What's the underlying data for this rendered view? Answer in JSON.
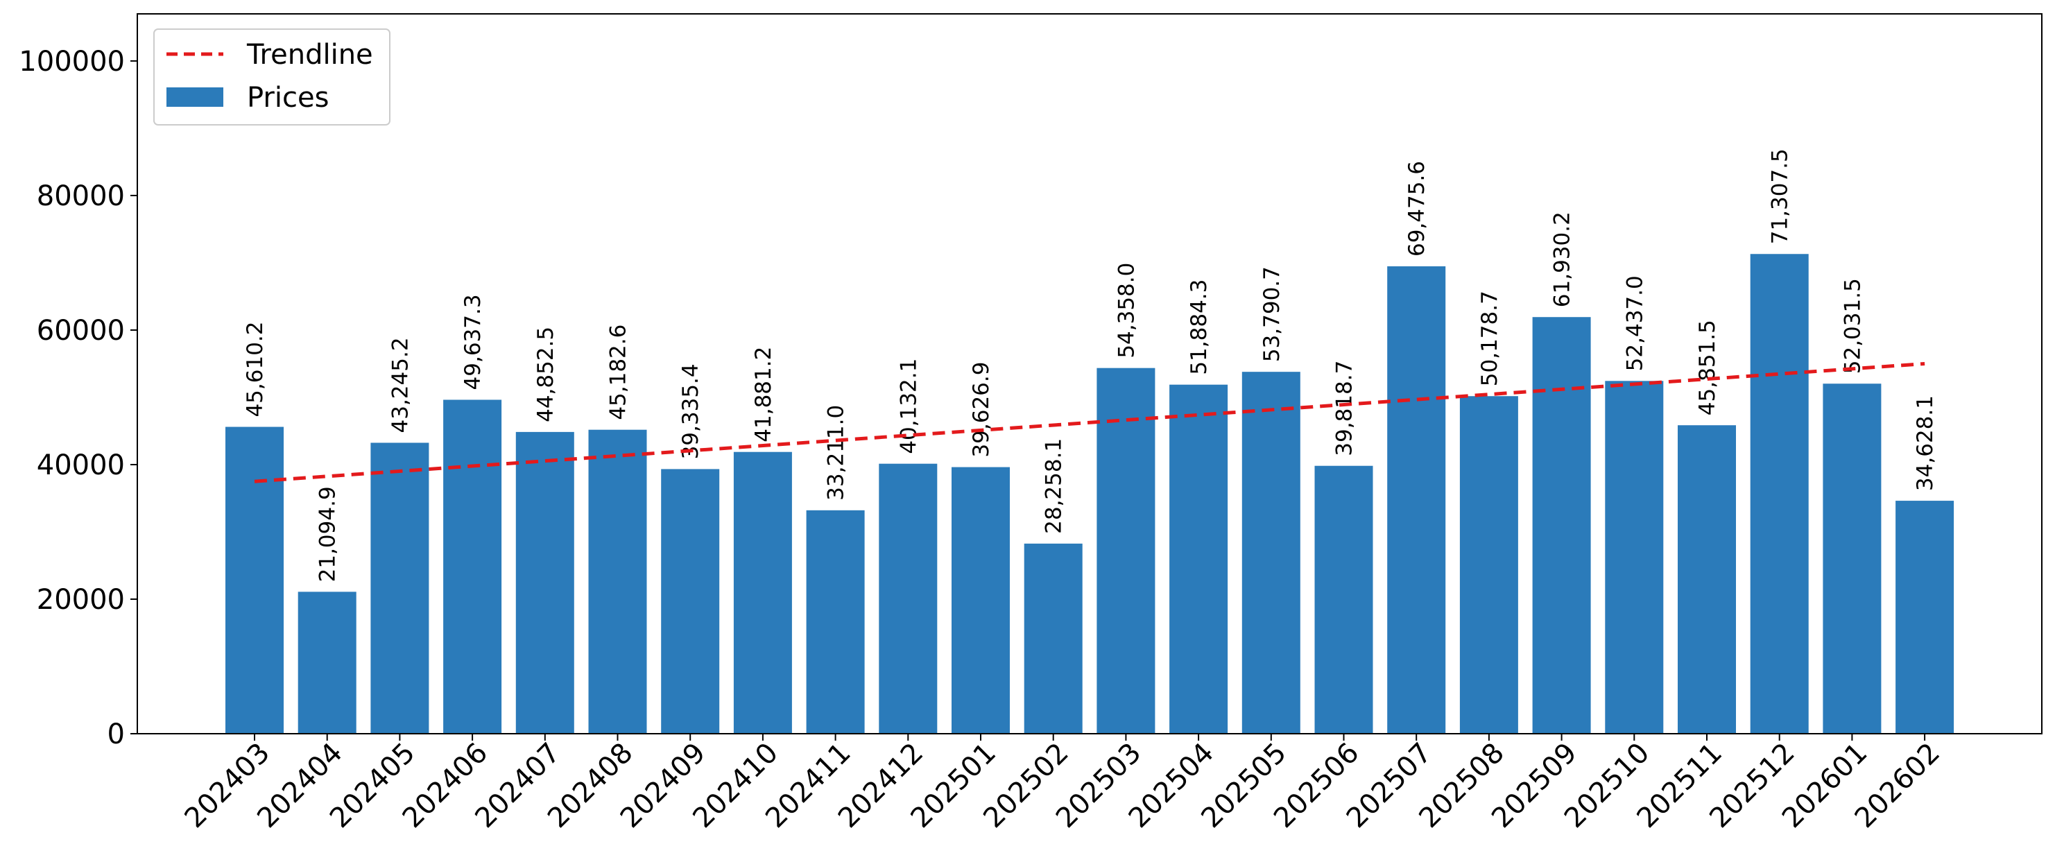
{
  "chart_data": {
    "type": "bar",
    "categories": [
      "202403",
      "202404",
      "202405",
      "202406",
      "202407",
      "202408",
      "202409",
      "202410",
      "202411",
      "202412",
      "202501",
      "202502",
      "202503",
      "202504",
      "202505",
      "202506",
      "202507",
      "202508",
      "202509",
      "202510",
      "202511",
      "202512",
      "202601",
      "202602"
    ],
    "series": [
      {
        "name": "Prices",
        "values": [
          45610.2,
          21094.9,
          43245.2,
          49637.3,
          44852.5,
          45182.6,
          39335.4,
          41881.2,
          33211.0,
          40132.1,
          39626.9,
          28258.1,
          54358.0,
          51884.3,
          53790.7,
          39818.7,
          69475.6,
          50178.7,
          61930.2,
          52437.0,
          45851.5,
          71307.5,
          52031.5,
          34628.1
        ],
        "labels": [
          "45,610.2",
          "21,094.9",
          "43,245.2",
          "49,637.3",
          "44,852.5",
          "45,182.6",
          "39,335.4",
          "41,881.2",
          "33,211.0",
          "40,132.1",
          "39,626.9",
          "28,258.1",
          "54,358.0",
          "51,884.3",
          "53,790.7",
          "39,818.7",
          "69,475.6",
          "50,178.7",
          "61,930.2",
          "52,437.0",
          "45,851.5",
          "71,307.5",
          "52,031.5",
          "34,628.1"
        ],
        "color": "#2b7bba"
      },
      {
        "name": "Trendline",
        "type": "line",
        "style": "dashed",
        "color": "#e31a1c",
        "start": 37500,
        "end": 55000
      }
    ],
    "yticks": [
      0,
      20000,
      40000,
      60000,
      80000,
      100000
    ],
    "ylim": [
      0,
      107000
    ],
    "title": "",
    "xlabel": "",
    "ylabel": "",
    "legend": {
      "position": "top-left",
      "entries": [
        "Trendline",
        "Prices"
      ]
    },
    "grid": false
  }
}
